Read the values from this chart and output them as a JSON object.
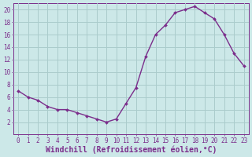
{
  "x": [
    0,
    1,
    2,
    3,
    4,
    5,
    6,
    7,
    8,
    9,
    10,
    11,
    12,
    13,
    14,
    15,
    16,
    17,
    18,
    19,
    20,
    21,
    22,
    23
  ],
  "y": [
    7,
    6,
    5.5,
    4.5,
    4,
    4,
    3.5,
    3,
    2.5,
    2,
    2.5,
    5,
    7.5,
    12.5,
    16,
    17.5,
    19.5,
    20,
    20.5,
    19.5,
    18.5,
    16,
    13,
    11
  ],
  "xlabel": "Windchill (Refroidissement éolien,°C)",
  "line_color": "#7b2d8b",
  "marker": "D",
  "marker_size": 2,
  "bg_color": "#cce8e8",
  "grid_color": "#b0d0d0",
  "ylim": [
    0,
    21
  ],
  "xlim": [
    -0.5,
    23.5
  ],
  "yticks": [
    2,
    4,
    6,
    8,
    10,
    12,
    14,
    16,
    18,
    20
  ],
  "xticks": [
    0,
    1,
    2,
    3,
    4,
    5,
    6,
    7,
    8,
    9,
    10,
    11,
    12,
    13,
    14,
    15,
    16,
    17,
    18,
    19,
    20,
    21,
    22,
    23
  ],
  "tick_fontsize": 5.5,
  "xlabel_fontsize": 7,
  "line_width": 1.0
}
